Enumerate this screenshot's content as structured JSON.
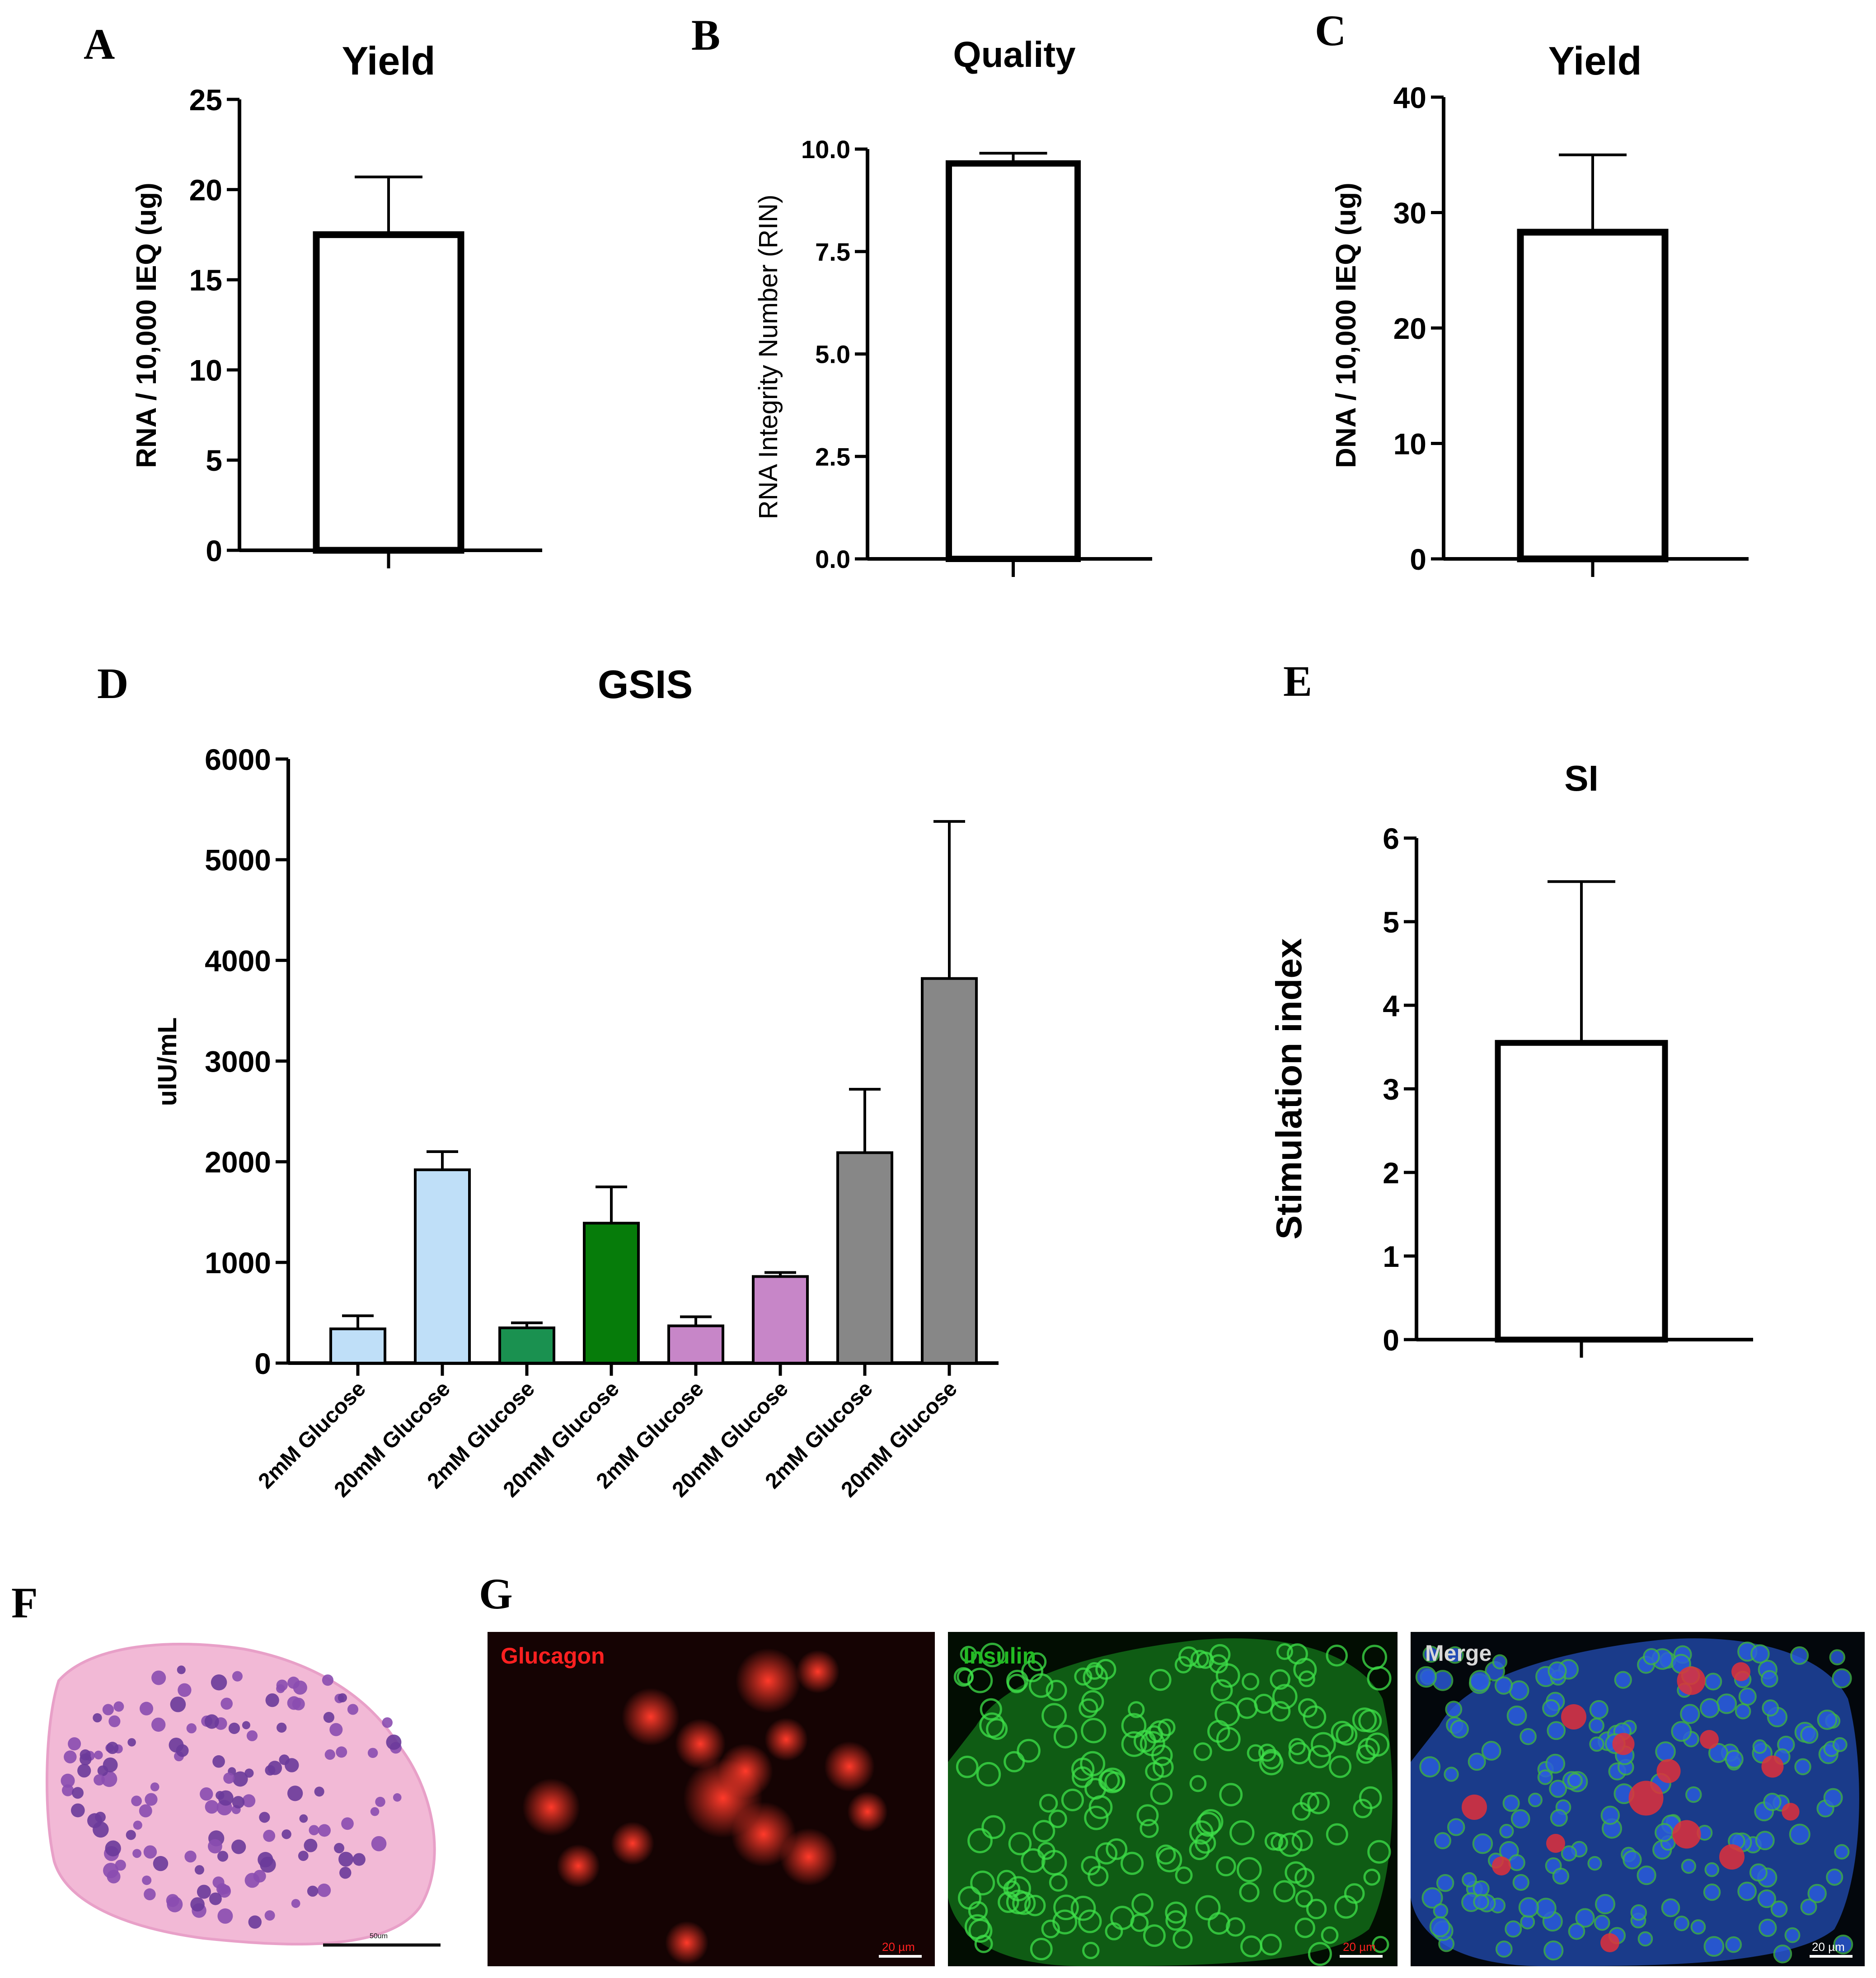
{
  "panels": {
    "A": "A",
    "B": "B",
    "C": "C",
    "D": "D",
    "E": "E",
    "F": "F",
    "G": "G"
  },
  "chart_data": [
    {
      "id": "A",
      "type": "bar",
      "title": "Yield",
      "ylabel": "RNA / 10,000 IEQ (ug)",
      "categories": [
        ""
      ],
      "values": [
        17.5
      ],
      "errors": [
        3.2
      ],
      "ylim": [
        0,
        25
      ],
      "yticks": [
        "0",
        "5",
        "10",
        "15",
        "20",
        "25"
      ],
      "ytickvals": [
        0,
        5,
        10,
        15,
        20,
        25
      ],
      "colors": [
        "#ffffff"
      ],
      "grid": false
    },
    {
      "id": "B",
      "type": "bar",
      "title": "Quality",
      "ylabel": "RNA Integrity Number (RIN)",
      "categories": [
        ""
      ],
      "values": [
        9.65
      ],
      "errors": [
        0.25
      ],
      "ylim": [
        0,
        10
      ],
      "yticks": [
        "0.0",
        "2.5",
        "5.0",
        "7.5",
        "10.0"
      ],
      "ytickvals": [
        0,
        2.5,
        5,
        7.5,
        10
      ],
      "colors": [
        "#ffffff"
      ],
      "grid": false
    },
    {
      "id": "C",
      "type": "bar",
      "title": "Yield",
      "ylabel": "DNA / 10,000 IEQ (ug)",
      "categories": [
        ""
      ],
      "values": [
        28.3
      ],
      "errors": [
        6.7
      ],
      "ylim": [
        0,
        40
      ],
      "yticks": [
        "0",
        "10",
        "20",
        "30",
        "40"
      ],
      "ytickvals": [
        0,
        10,
        20,
        30,
        40
      ],
      "colors": [
        "#ffffff"
      ],
      "grid": false
    },
    {
      "id": "D",
      "type": "bar",
      "title": "GSIS",
      "ylabel": "uIU/mL",
      "categories": [
        "2mM Glucose",
        "20mM Glucose",
        "2mM Glucose",
        "20mM Glucose",
        "2mM Glucose",
        "20mM Glucose",
        "2mM Glucose",
        "20mM Glucose"
      ],
      "values": [
        340,
        1920,
        350,
        1390,
        370,
        860,
        2090,
        3820
      ],
      "errors": [
        130,
        180,
        50,
        360,
        90,
        40,
        630,
        1560
      ],
      "ylim": [
        0,
        6000
      ],
      "yticks": [
        "0",
        "1000",
        "2000",
        "3000",
        "4000",
        "5000",
        "6000"
      ],
      "ytickvals": [
        0,
        1000,
        2000,
        3000,
        4000,
        5000,
        6000
      ],
      "colors": [
        "#bfdff8",
        "#bfdff8",
        "#1a9150",
        "#067c0a",
        "#c786c8",
        "#c786c8",
        "#878787",
        "#878787"
      ],
      "grid": false
    },
    {
      "id": "E",
      "type": "bar",
      "title": "SI",
      "ylabel": "Stimulation index",
      "categories": [
        ""
      ],
      "values": [
        3.55
      ],
      "errors": [
        1.93
      ],
      "ylim": [
        0,
        6
      ],
      "yticks": [
        "0",
        "1",
        "2",
        "3",
        "4",
        "5",
        "6"
      ],
      "ytickvals": [
        0,
        1,
        2,
        3,
        4,
        5,
        6
      ],
      "colors": [
        "#ffffff"
      ],
      "grid": false
    }
  ],
  "images": {
    "histology_scale": "50um",
    "channels": [
      {
        "label": "Glucagon",
        "label_color": "#ff2020",
        "scale": "20 µm"
      },
      {
        "label": "Insulin",
        "label_color": "#22bb22",
        "scale": "20 µm"
      },
      {
        "label": "Merge",
        "label_color": "#d8d8d8",
        "scale": "20 µm"
      }
    ]
  }
}
